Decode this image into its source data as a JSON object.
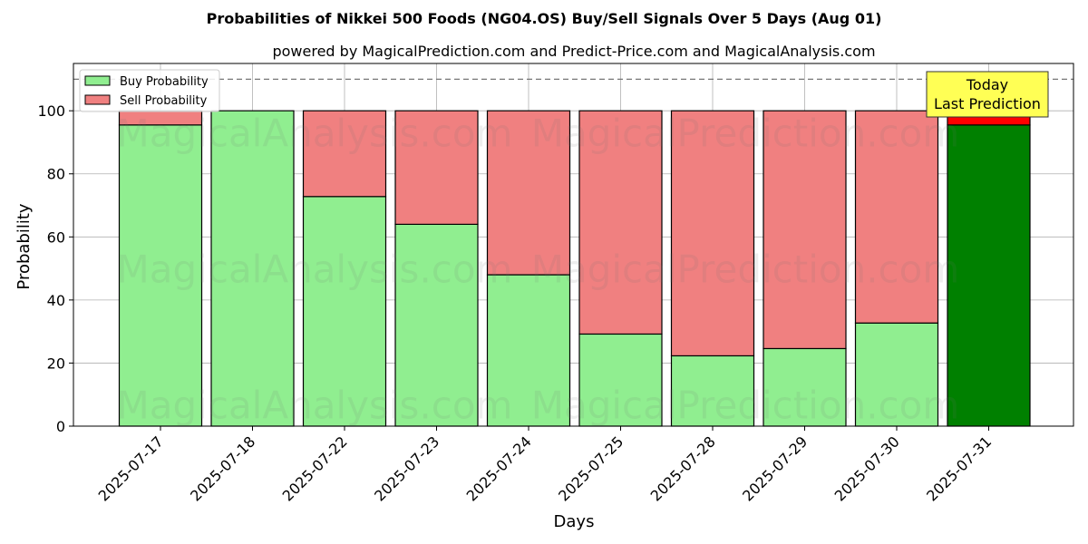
{
  "chart_data": {
    "type": "bar",
    "stacked": true,
    "title": "Probabilities of Nikkei 500 Foods (NG04.OS) Buy/Sell Signals Over 5 Days (Aug 01)",
    "subtitle": "powered by MagicalPrediction.com and Predict-Price.com and MagicalAnalysis.com",
    "xlabel": "Days",
    "ylabel": "Probability",
    "ylim": [
      0,
      115
    ],
    "yticks": [
      0,
      20,
      40,
      60,
      80,
      100
    ],
    "grid": true,
    "legend_position": "top-left",
    "reference_line": 110,
    "categories": [
      "2025-07-17",
      "2025-07-18",
      "2025-07-22",
      "2025-07-23",
      "2025-07-24",
      "2025-07-25",
      "2025-07-28",
      "2025-07-29",
      "2025-07-30",
      "2025-07-31"
    ],
    "series": [
      {
        "name": "Buy Probability",
        "color": "#90ee90",
        "highlight_color": "#008000",
        "values": [
          95.5,
          100,
          72.8,
          64,
          48,
          29.2,
          22.3,
          24.6,
          32.7,
          95.5
        ]
      },
      {
        "name": "Sell Probability",
        "color": "#f08080",
        "highlight_color": "#ff0000",
        "values": [
          4.5,
          0,
          27.2,
          36,
          52,
          70.8,
          77.7,
          75.4,
          67.3,
          4.5
        ]
      }
    ],
    "annotation": {
      "line1": "Today",
      "line2": "Last Prediction",
      "background": "#ffff55"
    },
    "watermarks": [
      "MagicalAnalysis.com",
      "MagicalPrediction.com"
    ]
  }
}
